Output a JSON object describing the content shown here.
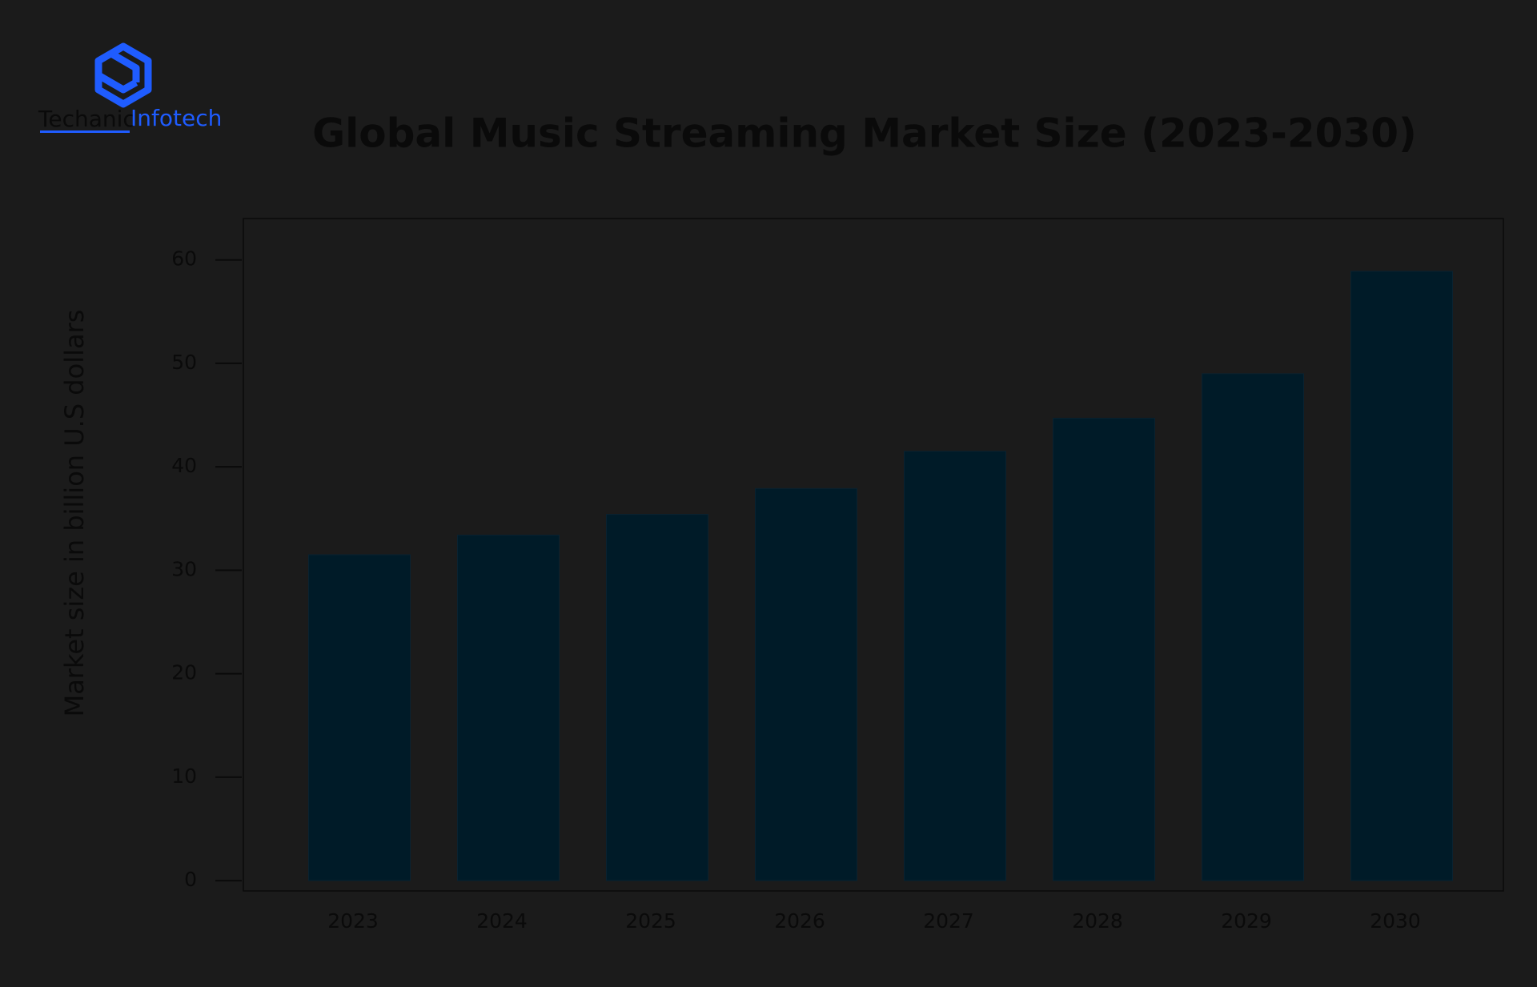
{
  "logo": {
    "part1": "Techanic",
    "part2": "Infotech"
  },
  "chart_data": {
    "type": "bar",
    "title": "Global Music Streaming Market Size (2023-2030)",
    "y_label": "Market size in billion U.S dollars",
    "categories": [
      "2023",
      "2024",
      "2025",
      "2026",
      "2027",
      "2028",
      "2029",
      "2030"
    ],
    "values": [
      31.5,
      33.4,
      35.4,
      37.9,
      41.5,
      44.7,
      49.0,
      58.9
    ],
    "color": "#001b28",
    "ylim": [
      -1,
      64
    ],
    "yticks": [
      0,
      10,
      20,
      30,
      40,
      50,
      60
    ],
    "grid": false
  }
}
